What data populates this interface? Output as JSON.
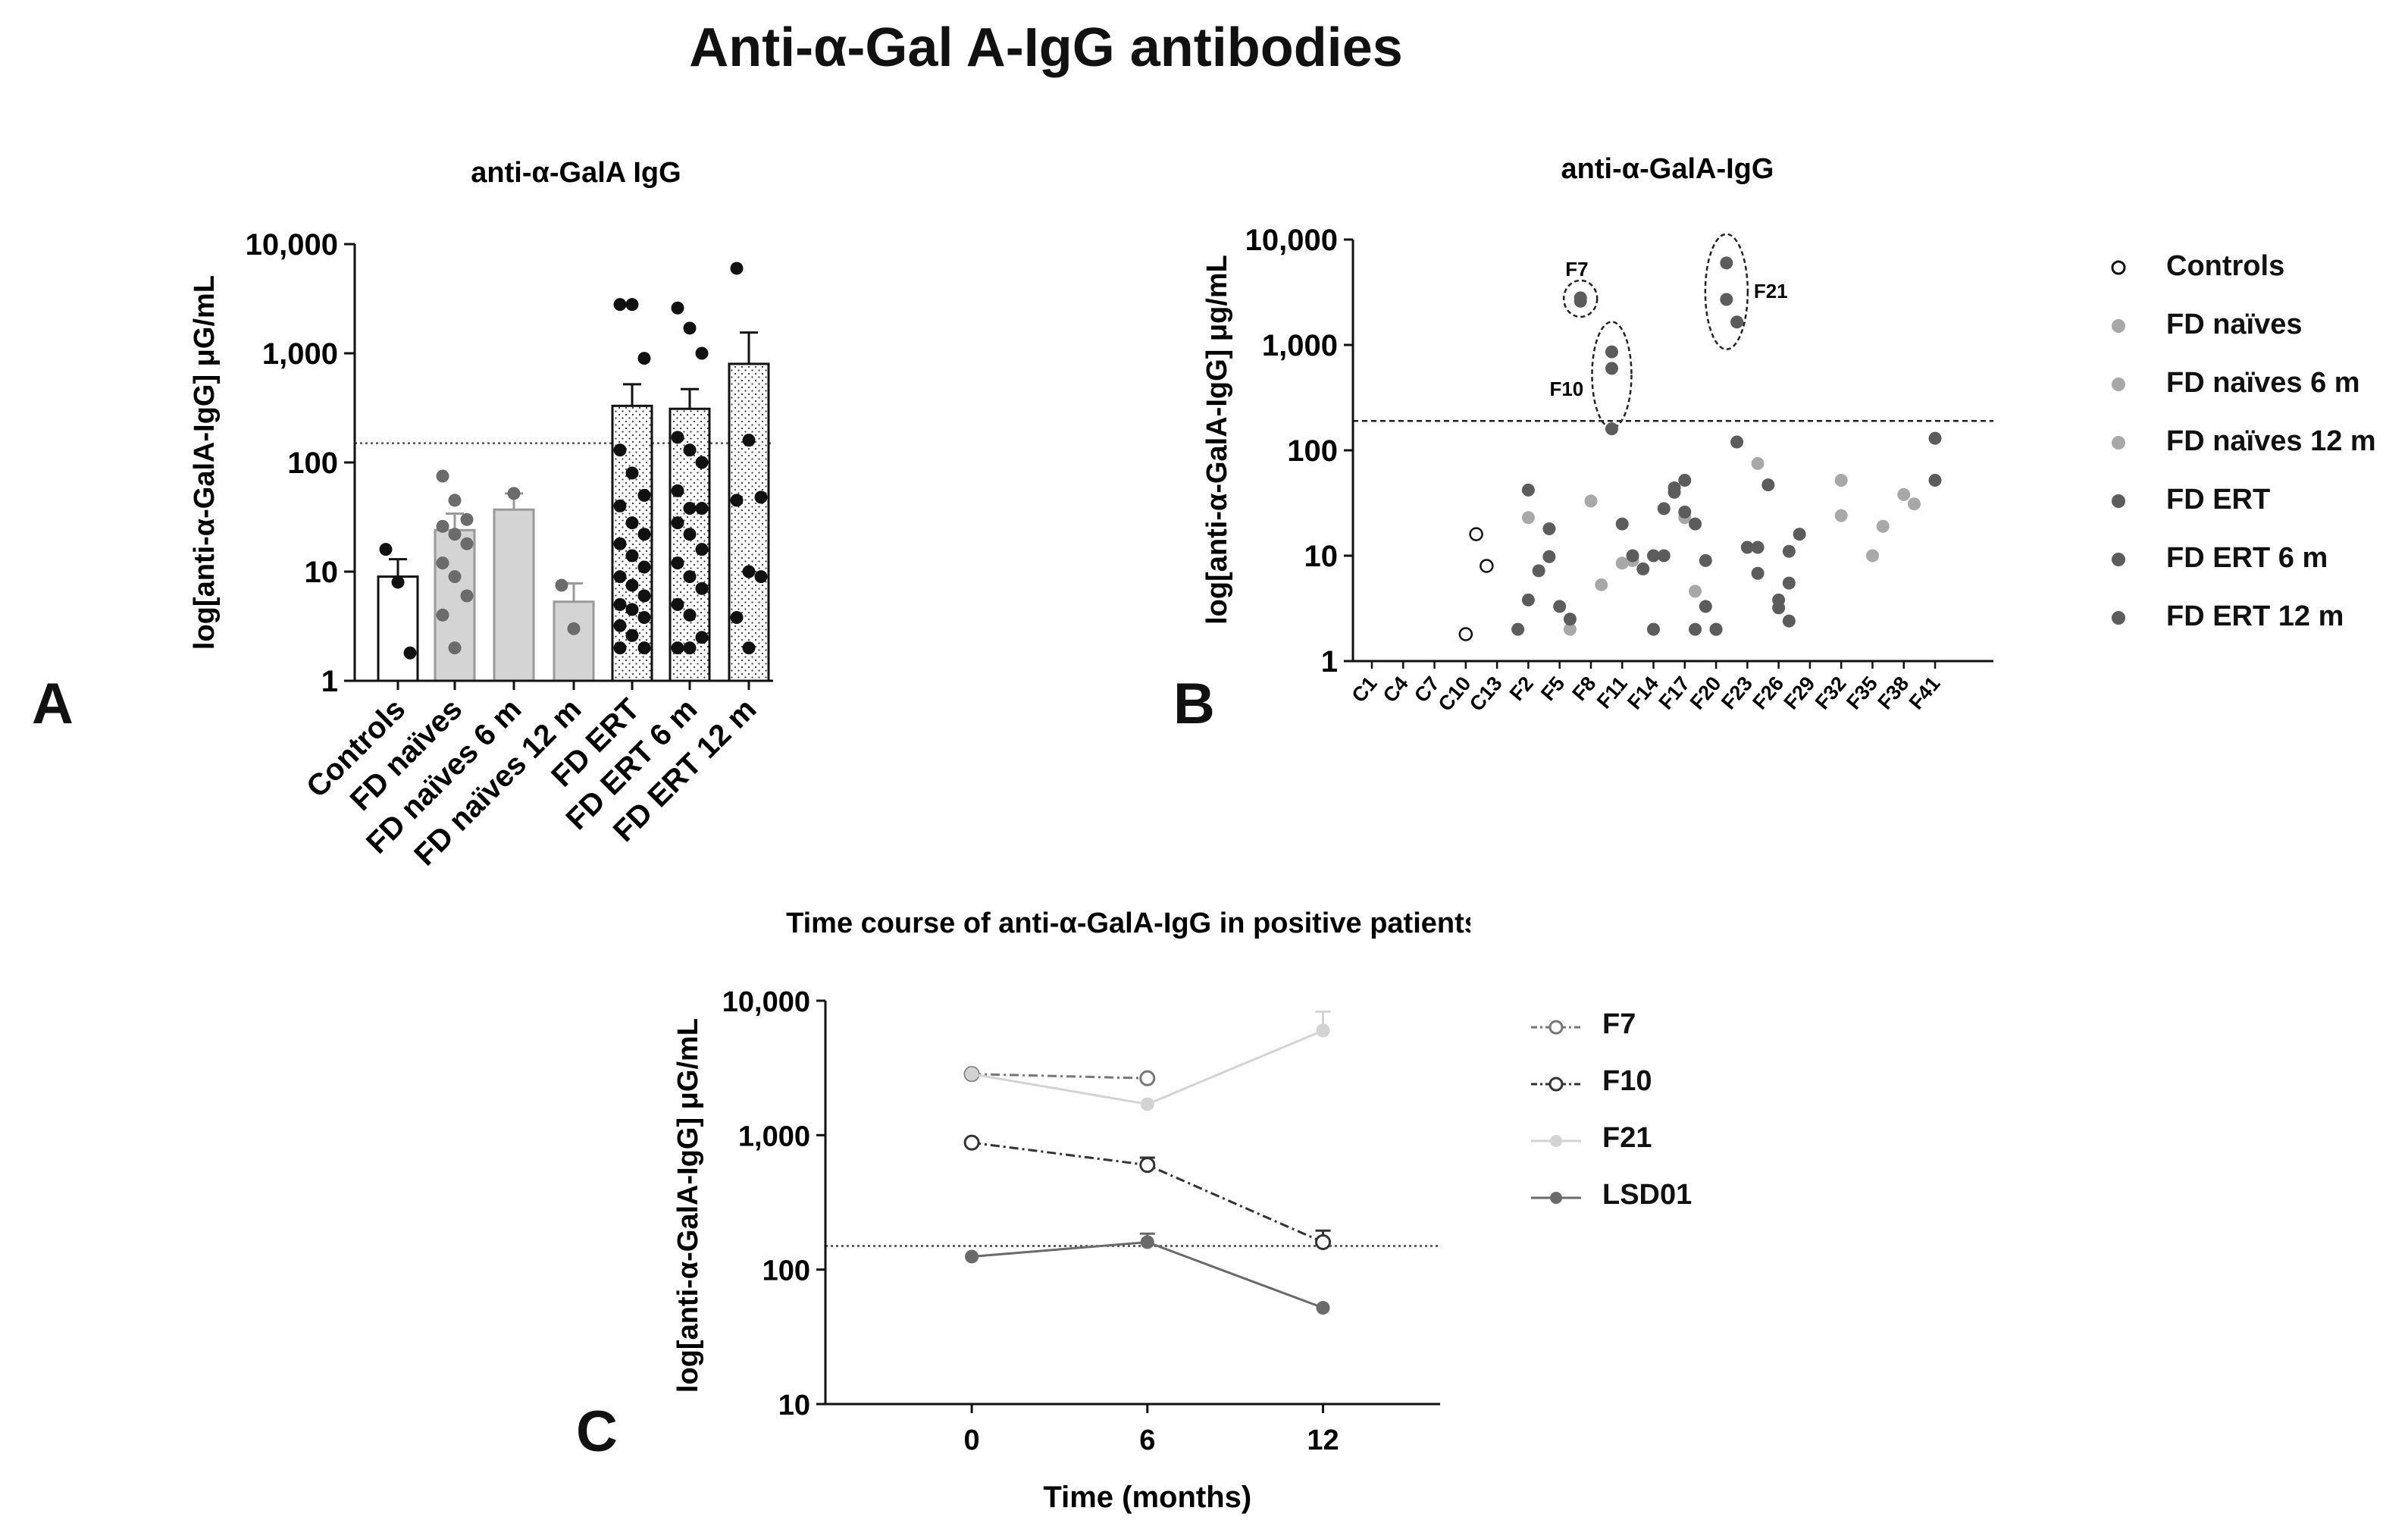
{
  "main_title": "Anti-α-Gal A-IgG antibodies",
  "panel_letters": [
    "A",
    "B",
    "C"
  ],
  "colors": {
    "black": "#111111",
    "dark_gray": "#555555",
    "mid_gray": "#9a9a9a",
    "light_gray": "#d9d9d9",
    "bar_gray": "#d4d4d4"
  },
  "chart_data": [
    {
      "id": "A",
      "type": "bar",
      "title": "anti-α-GalA IgG",
      "ylabel": "log[anti-α-GalA-IgG] μG/mL",
      "xlabel": "",
      "yscale": "log",
      "ylim": [
        1,
        10000
      ],
      "ytick_labels": [
        "1",
        "10",
        "100",
        "1,000",
        "10,000"
      ],
      "ytick_values": [
        1,
        10,
        100,
        1000,
        10000
      ],
      "threshold": 150,
      "categories": [
        "Controls",
        "FD naïves",
        "FD naïves 6 m",
        "FD naïves 12 m",
        "FD ERT",
        "FD ERT 6 m",
        "FD ERT 12 m"
      ],
      "values": [
        9,
        24,
        37,
        5.3,
        330,
        310,
        800
      ],
      "errors": [
        13,
        34,
        52,
        7.8,
        520,
        470,
        1550
      ],
      "bar_style": [
        "white",
        "gray",
        "gray",
        "gray",
        "dotted",
        "dotted",
        "dotted"
      ],
      "point_color": [
        "black",
        "gray",
        "gray",
        "gray",
        "black",
        "black",
        "black"
      ],
      "points": [
        [
          16,
          8,
          1.8
        ],
        [
          75,
          45,
          30,
          26,
          22,
          18,
          12,
          9,
          6,
          4,
          2
        ],
        [
          52
        ],
        [
          7.5,
          3
        ],
        [
          2800,
          2800,
          900,
          130,
          80,
          50,
          40,
          28,
          22,
          18,
          14,
          11,
          9,
          7.5,
          6,
          5,
          4.5,
          3.8,
          3.2,
          2.6,
          2,
          2
        ],
        [
          2600,
          1700,
          1000,
          170,
          130,
          100,
          55,
          38,
          38,
          28,
          22,
          16,
          12,
          9,
          7,
          5,
          4,
          2.5,
          2,
          2
        ],
        [
          6000,
          160,
          48,
          45,
          10,
          9,
          3.8,
          2
        ]
      ]
    },
    {
      "id": "B",
      "type": "scatter",
      "title": "anti-α-GalA-IgG",
      "ylabel": "log[anti-α-GalA-IgG] μg/mL",
      "xlabel": "",
      "yscale": "log",
      "ylim": [
        1,
        10000
      ],
      "ytick_labels": [
        "1",
        "10",
        "100",
        "1,000",
        "10,000"
      ],
      "ytick_values": [
        1,
        10,
        100,
        1000,
        10000
      ],
      "threshold": 190,
      "xtick_labels": [
        "C1",
        "C4",
        "C7",
        "C10",
        "C13",
        "F2",
        "F5",
        "F8",
        "F11",
        "F14",
        "F17",
        "F20",
        "F23",
        "F26",
        "F29",
        "F32",
        "F35",
        "F38",
        "F41"
      ],
      "xtick_index": [
        1,
        4,
        7,
        10,
        13,
        16,
        19,
        22,
        25,
        28,
        31,
        34,
        37,
        40,
        43,
        46,
        49,
        52,
        55
      ],
      "series": [
        {
          "name": "Controls",
          "marker": "open",
          "color": "#111111",
          "x": [
            10,
            11,
            12
          ],
          "y": [
            1.8,
            16,
            8
          ]
        },
        {
          "name": "FD naïves",
          "marker": "filled",
          "color": "#a8a8a8",
          "x": [
            16,
            20,
            22,
            23,
            25,
            26,
            31,
            32,
            38,
            46,
            49,
            52
          ],
          "y": [
            23,
            2,
            33,
            5.3,
            8.5,
            9,
            23,
            4.6,
            75,
            52,
            10,
            38
          ]
        },
        {
          "name": "FD naïves 6 m",
          "marker": "filled",
          "color": "#a8a8a8",
          "x": [
            46,
            50
          ],
          "y": [
            24,
            19
          ]
        },
        {
          "name": "FD naïves 12 m",
          "marker": "filled",
          "color": "#a8a8a8",
          "x": [
            53
          ],
          "y": [
            31
          ]
        },
        {
          "name": "FD ERT",
          "marker": "filled",
          "color": "#5c5c5c",
          "x": [
            15,
            16,
            17,
            18,
            19,
            20,
            21,
            24,
            25,
            26,
            27,
            28,
            29,
            30,
            31,
            32,
            33,
            34,
            36,
            37,
            38,
            39,
            40,
            41,
            55
          ],
          "y": [
            2,
            3.8,
            7.2,
            9.8,
            3.3,
            2.5,
            2800,
            860,
            20,
            10,
            7.5,
            2,
            10,
            40,
            52,
            20,
            9,
            2,
            120,
            12,
            6.8,
            47,
            3.8,
            5.5,
            130
          ],
          "note": ""
        },
        {
          "name": "FD ERT 6 m",
          "marker": "filled",
          "color": "#5c5c5c",
          "x": [
            16,
            18,
            21,
            24,
            28,
            29,
            30,
            31,
            32,
            33,
            34,
            35,
            36,
            38,
            40,
            41
          ],
          "y": [
            42,
            18,
            2600,
            600,
            10,
            28,
            44,
            26,
            2,
            3.3,
            2,
            2700,
            1650,
            12,
            3.2,
            2.4
          ],
          "note": ""
        },
        {
          "name": "FD ERT 12 m",
          "marker": "filled",
          "color": "#5c5c5c",
          "x": [
            24,
            35,
            41,
            42,
            55
          ],
          "y": [
            160,
            6000,
            11,
            16,
            52
          ]
        }
      ],
      "annotations": [
        "F7",
        "F10",
        "F21"
      ],
      "legend": {
        "placement": "right",
        "items": [
          "Controls",
          "FD naïves",
          "FD naïves 6 m",
          "FD naïves 12 m",
          "FD ERT",
          "FD ERT 6 m",
          "FD ERT 12 m"
        ],
        "markers": [
          "open",
          "light",
          "light",
          "light",
          "dark",
          "dark",
          "dark"
        ]
      }
    },
    {
      "id": "C",
      "type": "line",
      "title": "Time course of anti-α-GalA-IgG in positive patients",
      "ylabel": "log[anti-α-GalA-IgG] μG/mL",
      "xlabel": "Time (months)",
      "yscale": "log",
      "ylim": [
        10,
        10000
      ],
      "xlim": [
        -5,
        16
      ],
      "ytick_labels": [
        "10",
        "100",
        "1,000",
        "10,000"
      ],
      "ytick_values": [
        10,
        100,
        1000,
        10000
      ],
      "xtick_labels": [
        "0",
        "6",
        "12"
      ],
      "x": [
        0,
        6,
        12
      ],
      "threshold": 150,
      "series": [
        {
          "name": "F7",
          "values": [
            2850,
            2650,
            null
          ],
          "marker": "open",
          "line": "dash-dot",
          "color": "#777777"
        },
        {
          "name": "F10",
          "values": [
            880,
            600,
            160
          ],
          "errors": [
            null,
            680,
            195
          ],
          "marker": "open",
          "line": "dash-dot",
          "color": "#333333"
        },
        {
          "name": "F21",
          "values": [
            2850,
            1700,
            6000
          ],
          "errors": [
            null,
            null,
            8300
          ],
          "marker": "filled",
          "line": "solid",
          "color": "#d3d3d3"
        },
        {
          "name": "LSD01",
          "values": [
            125,
            160,
            52
          ],
          "errors": [
            null,
            185,
            null
          ],
          "marker": "filled",
          "line": "solid",
          "color": "#6a6a6a"
        }
      ],
      "legend": {
        "placement": "right",
        "items": [
          "F7",
          "F10",
          "F21",
          "LSD01"
        ]
      }
    }
  ]
}
